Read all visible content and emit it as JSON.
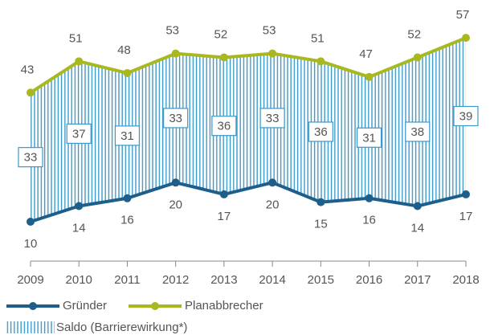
{
  "chart_data": {
    "type": "line",
    "categories": [
      "2009",
      "2010",
      "2011",
      "2012",
      "2013",
      "2014",
      "2015",
      "2016",
      "2017",
      "2018"
    ],
    "series": [
      {
        "name": "Gründer",
        "color": "#1d5f8a",
        "values": [
          10,
          14,
          16,
          20,
          17,
          20,
          15,
          16,
          14,
          17
        ]
      },
      {
        "name": "Planabbrecher",
        "color": "#a9b81f",
        "values": [
          43,
          51,
          48,
          53,
          52,
          53,
          51,
          47,
          52,
          57
        ]
      },
      {
        "name": "Saldo (Barrierewirkung*)",
        "color": "#3c98c8",
        "values": [
          33,
          37,
          31,
          33,
          36,
          33,
          36,
          31,
          38,
          39
        ]
      }
    ]
  }
}
